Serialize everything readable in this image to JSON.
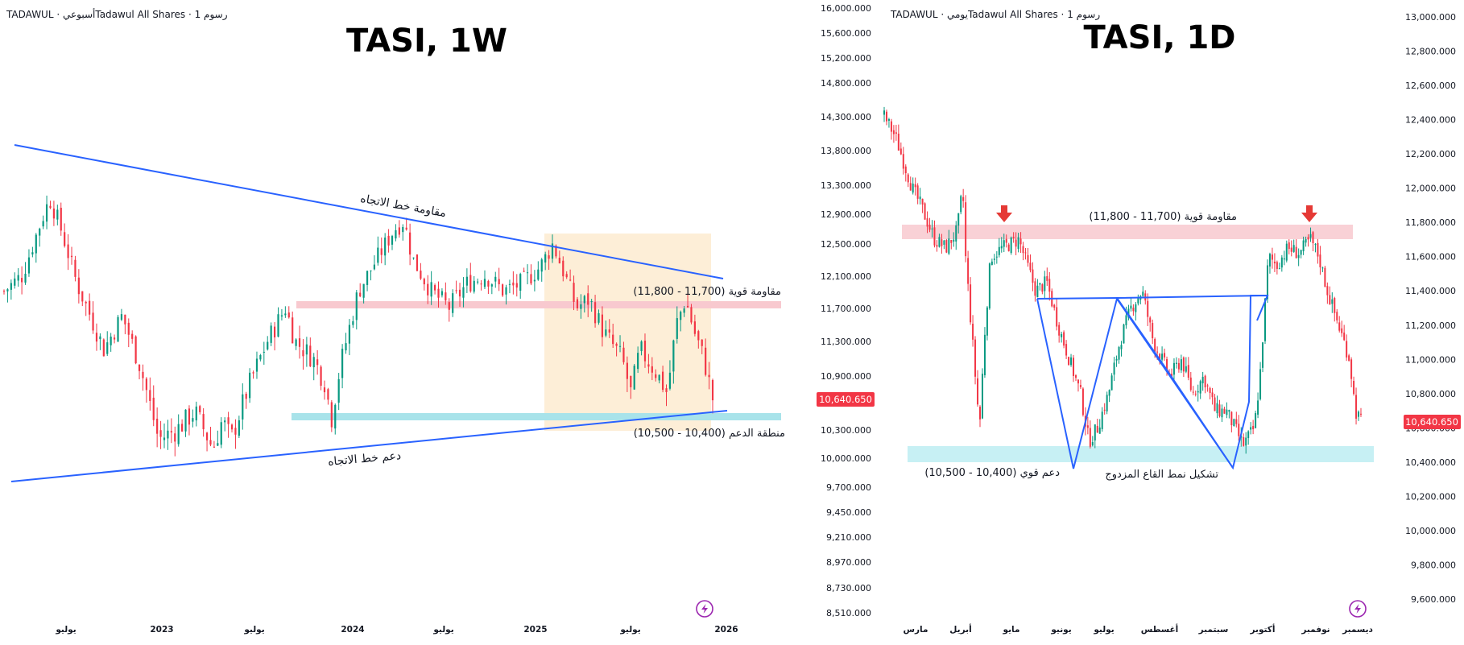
{
  "accent": {
    "up": "#089981",
    "down": "#f23645",
    "line": "#2962ff",
    "price_tag": "#f23645",
    "resist_band": "#f8c9cf",
    "support_band": "#a8e3ea",
    "box": "#fdebd0"
  },
  "left_panel": {
    "header": "TADAWUL · أسبوعيTadawul All Shares · 1 رسوم",
    "title": "TASI, 1W",
    "icon": "lightning-icon",
    "x_ticks": [
      "يوليو",
      "2023",
      "يوليو",
      "2024",
      "يوليو",
      "2025",
      "يوليو",
      "2026"
    ],
    "y_ticks": [
      "16,000.000",
      "15,600.000",
      "15,200.000",
      "14,800.000",
      "14,300.000",
      "13,800.000",
      "13,300.000",
      "12,900.000",
      "12,500.000",
      "12,100.000",
      "11,700.000",
      "11,300.000",
      "10,900.000",
      "10,300.000",
      "10,000.000",
      "9,700.000",
      "9,450.000",
      "9,210.000",
      "8,970.000",
      "8,730.000",
      "8,510.000"
    ],
    "price_tag": "10,640.650",
    "annotations": {
      "trend_resistance": "مقاومة خط الاتجاه",
      "trend_support": "دعم خط الاتجاه",
      "strong_resistance": "مقاومة قوية (11,700 - 11,800)",
      "support_zone": "منطقة الدعم (10,400 - 10,500)"
    }
  },
  "right_panel": {
    "header": "TADAWUL · يوميTadawul All Shares · 1 رسوم",
    "title": "TASI, 1D",
    "icon": "lightning-icon",
    "x_ticks": [
      "مارس",
      "أبريل",
      "مايو",
      "يونيو",
      "يوليو",
      "أغسطس",
      "سبتمبر",
      "أكتوبر",
      "نوفمبر",
      "ديسمبر"
    ],
    "y_ticks": [
      "13,000.000",
      "12,800.000",
      "12,600.000",
      "12,400.000",
      "12,200.000",
      "12,000.000",
      "11,800.000",
      "11,600.000",
      "11,400.000",
      "11,200.000",
      "11,000.000",
      "10,800.000",
      "10,600.000",
      "10,400.000",
      "10,200.000",
      "10,000.000",
      "9,800.000",
      "9,600.000"
    ],
    "price_tag": "10,640.650",
    "annotations": {
      "strong_resistance": "مقاومة قوية (11,700 - 11,800)",
      "strong_support": "دعم قوي (10,400 - 10,500)",
      "double_bottom": "تشكيل نمط القاع المزدوج"
    }
  },
  "chart_data": [
    {
      "type": "candlestick",
      "title": "TASI, 1W",
      "timeframe": "1W",
      "x_ticks": [
        "يوليو",
        "2023",
        "يوليو",
        "2024",
        "يوليو",
        "2025",
        "يوليو",
        "2026"
      ],
      "y_scale": "log",
      "y_range": [
        8510,
        16000
      ],
      "close_path": [
        [
          2022.05,
          11900
        ],
        [
          2022.15,
          12100
        ],
        [
          2022.3,
          13100
        ],
        [
          2022.35,
          12800
        ],
        [
          2022.45,
          12000
        ],
        [
          2022.6,
          11200
        ],
        [
          2022.7,
          11600
        ],
        [
          2022.8,
          11000
        ],
        [
          2022.9,
          10200
        ],
        [
          2023.0,
          10300
        ],
        [
          2023.1,
          10500
        ],
        [
          2023.2,
          10100
        ],
        [
          2023.25,
          10400
        ],
        [
          2023.3,
          10200
        ],
        [
          2023.4,
          10800
        ],
        [
          2023.5,
          11300
        ],
        [
          2023.6,
          11700
        ],
        [
          2023.65,
          11300
        ],
        [
          2023.75,
          11100
        ],
        [
          2023.82,
          10800
        ],
        [
          2023.85,
          10400
        ],
        [
          2023.9,
          11000
        ],
        [
          2024.0,
          11900
        ],
        [
          2024.1,
          12300
        ],
        [
          2024.2,
          12700
        ],
        [
          2024.25,
          12800
        ],
        [
          2024.3,
          12300
        ],
        [
          2024.4,
          11900
        ],
        [
          2024.5,
          11700
        ],
        [
          2024.6,
          12000
        ],
        [
          2024.7,
          12100
        ],
        [
          2024.8,
          11900
        ],
        [
          2024.9,
          12000
        ],
        [
          2025.0,
          12200
        ],
        [
          2025.07,
          12500
        ],
        [
          2025.12,
          12200
        ],
        [
          2025.2,
          11700
        ],
        [
          2025.27,
          11800
        ],
        [
          2025.35,
          11400
        ],
        [
          2025.45,
          11100
        ],
        [
          2025.5,
          10700
        ],
        [
          2025.55,
          11200
        ],
        [
          2025.65,
          10900
        ],
        [
          2025.7,
          10700
        ],
        [
          2025.75,
          11500
        ],
        [
          2025.8,
          11800
        ],
        [
          2025.85,
          11400
        ],
        [
          2025.9,
          11100
        ],
        [
          2025.95,
          10640
        ]
      ],
      "trendline_resistance": [
        [
          2022.05,
          13900
        ],
        [
          2025.97,
          12100
        ]
      ],
      "trendline_support": [
        [
          2022.05,
          9850
        ],
        [
          2025.97,
          10620
        ]
      ],
      "resistance_zone": [
        11700,
        11800
      ],
      "support_zone": [
        10400,
        10500
      ],
      "last_price": 10640.65
    },
    {
      "type": "candlestick",
      "title": "TASI, 1D",
      "timeframe": "1D",
      "x_ticks": [
        "مارس",
        "أبريل",
        "مايو",
        "يونيو",
        "يوليو",
        "أغسطس",
        "سبتمبر",
        "أكتوبر",
        "نوفمبر",
        "ديسمبر"
      ],
      "y_range": [
        9500,
        13100
      ],
      "close_path": [
        [
          2.4,
          12420
        ],
        [
          2.6,
          12300
        ],
        [
          2.9,
          12000
        ],
        [
          3.05,
          11900
        ],
        [
          3.3,
          11700
        ],
        [
          3.5,
          11650
        ],
        [
          3.7,
          11750
        ],
        [
          3.8,
          12000
        ],
        [
          3.85,
          11600
        ],
        [
          4.1,
          10600
        ],
        [
          4.2,
          11200
        ],
        [
          4.3,
          11600
        ],
        [
          4.5,
          11650
        ],
        [
          4.8,
          11700
        ],
        [
          5.0,
          11500
        ],
        [
          5.1,
          11400
        ],
        [
          5.3,
          11450
        ],
        [
          5.5,
          11200
        ],
        [
          5.7,
          11000
        ],
        [
          5.9,
          10800
        ],
        [
          6.05,
          10520
        ],
        [
          6.2,
          10600
        ],
        [
          6.4,
          10800
        ],
        [
          6.6,
          11100
        ],
        [
          6.8,
          11300
        ],
        [
          7.0,
          11400
        ],
        [
          7.2,
          11100
        ],
        [
          7.5,
          10900
        ],
        [
          7.7,
          11000
        ],
        [
          7.9,
          10800
        ],
        [
          8.1,
          10900
        ],
        [
          8.3,
          10700
        ],
        [
          8.5,
          10700
        ],
        [
          8.8,
          10500
        ],
        [
          9.0,
          10600
        ],
        [
          9.1,
          10900
        ],
        [
          9.25,
          11600
        ],
        [
          9.4,
          11550
        ],
        [
          9.6,
          11650
        ],
        [
          9.8,
          11620
        ],
        [
          10.0,
          11700
        ],
        [
          10.15,
          11600
        ],
        [
          10.3,
          11400
        ],
        [
          10.5,
          11200
        ],
        [
          10.7,
          11000
        ],
        [
          10.8,
          10700
        ],
        [
          10.9,
          10640
        ]
      ],
      "resistance_zone": [
        11700,
        11800
      ],
      "support_zone": [
        10400,
        10500
      ],
      "double_bottom_lows": [
        [
          6.1,
          10420
        ],
        [
          9.0,
          10420
        ]
      ],
      "last_price": 10640.65
    }
  ]
}
